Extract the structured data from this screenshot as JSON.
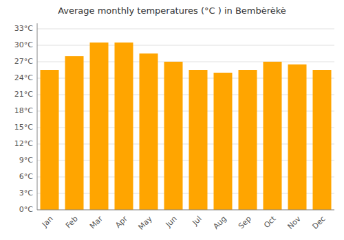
{
  "chart_data": {
    "type": "bar",
    "title": "Average monthly temperatures (°C ) in Bembèrèkè",
    "categories": [
      "Jan",
      "Feb",
      "Mar",
      "Apr",
      "May",
      "Jun",
      "Jul",
      "Aug",
      "Sep",
      "Oct",
      "Nov",
      "Dec"
    ],
    "values": [
      25.5,
      28.0,
      30.5,
      30.5,
      28.5,
      27.0,
      25.5,
      25.0,
      25.5,
      27.0,
      26.5,
      25.5
    ],
    "color": "#FFA500",
    "ylim": [
      0,
      34
    ],
    "yticks": [
      {
        "value": 0,
        "label": "0°C"
      },
      {
        "value": 3,
        "label": "3°C"
      },
      {
        "value": 6,
        "label": "6°C"
      },
      {
        "value": 9,
        "label": "9°C"
      },
      {
        "value": 12,
        "label": "12°C"
      },
      {
        "value": 15,
        "label": "15°C"
      },
      {
        "value": 18,
        "label": "18°C"
      },
      {
        "value": 21,
        "label": "21°C"
      },
      {
        "value": 24,
        "label": "24°C"
      },
      {
        "value": 27,
        "label": "27°C"
      },
      {
        "value": 30,
        "label": "30°C"
      },
      {
        "value": 33,
        "label": "33°C"
      }
    ],
    "grid": true
  }
}
